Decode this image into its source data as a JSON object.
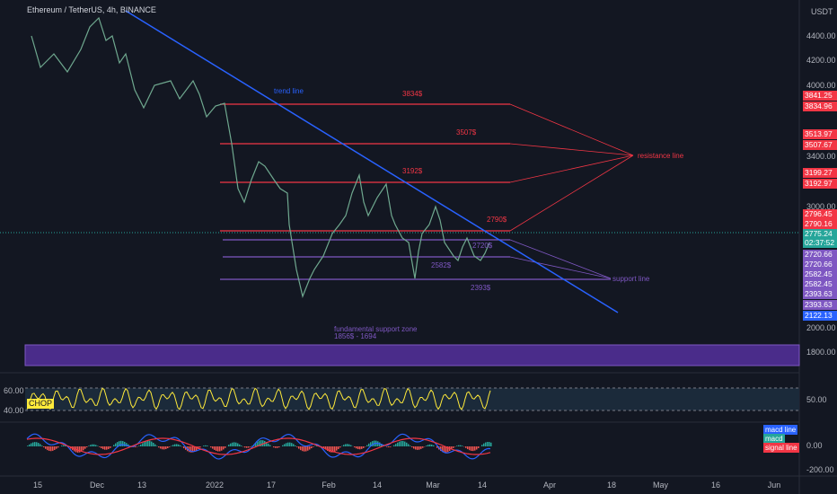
{
  "header": {
    "symbol": "Ethereum / TetherUS, 4h, BINANCE",
    "currency": "USDT"
  },
  "price_axis": [
    "4400.00",
    "4200.00",
    "4000.00",
    "3400.00",
    "3000.00",
    "2000.00",
    "1800.00"
  ],
  "price_tags": [
    {
      "label": "3841.25",
      "kind": "resistance"
    },
    {
      "label": "3834.96",
      "kind": "resistance"
    },
    {
      "label": "3513.97",
      "kind": "resistance"
    },
    {
      "label": "3507.67",
      "kind": "resistance"
    },
    {
      "label": "3199.27",
      "kind": "resistance"
    },
    {
      "label": "3192.97",
      "kind": "resistance"
    },
    {
      "label": "2796.45",
      "kind": "resistance"
    },
    {
      "label": "2790.16",
      "kind": "resistance"
    },
    {
      "label": "2775.24",
      "kind": "current"
    },
    {
      "label": "02:37:52",
      "kind": "current"
    },
    {
      "label": "2720.66",
      "kind": "support"
    },
    {
      "label": "2720.66",
      "kind": "support"
    },
    {
      "label": "2582.45",
      "kind": "support"
    },
    {
      "label": "2582.45",
      "kind": "support"
    },
    {
      "label": "2393.63",
      "kind": "support"
    },
    {
      "label": "2393.63",
      "kind": "support"
    },
    {
      "label": "2122.13",
      "kind": "trend"
    }
  ],
  "annotations": [
    "trend line",
    "3834$",
    "3507$",
    "3192$",
    "2790$",
    "2720$",
    "2582$",
    "2393$",
    "resistance line",
    "support line",
    "fundamental support zone",
    "1856$ - 1694"
  ],
  "time_axis": [
    "15",
    "Dec",
    "13",
    "2022",
    "17",
    "Feb",
    "14",
    "Mar",
    "14",
    "Apr",
    "18",
    "May",
    "16",
    "Jun"
  ],
  "chop": {
    "name": "CHOP",
    "labels": [
      "60.00",
      "40.00"
    ],
    "right_label": "50.00"
  },
  "macd": {
    "legend": [
      "macd line",
      "macd",
      "signal line"
    ],
    "labels": [
      "0.00",
      "-200.00"
    ]
  }
}
